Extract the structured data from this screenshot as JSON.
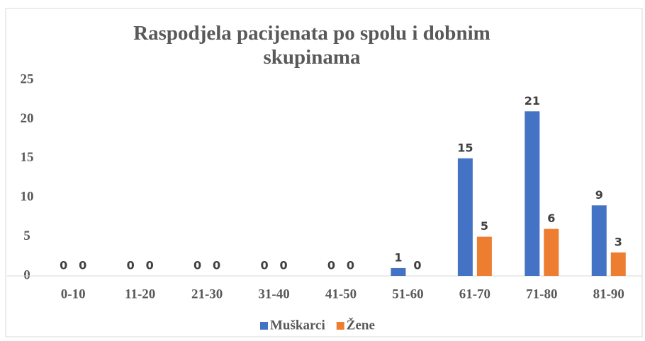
{
  "chart_data": {
    "type": "bar",
    "title": "Raspodjela pacijenata po spolu i dobnim skupinama",
    "categories": [
      "0-10",
      "11-20",
      "21-30",
      "31-40",
      "41-50",
      "51-60",
      "61-70",
      "71-80",
      "81-90"
    ],
    "series": [
      {
        "name": "Muškarci",
        "color": "#4472c4",
        "values": [
          0,
          0,
          0,
          0,
          0,
          1,
          15,
          21,
          9
        ]
      },
      {
        "name": "Žene",
        "color": "#ed7d31",
        "values": [
          0,
          0,
          0,
          0,
          0,
          0,
          5,
          6,
          3
        ]
      }
    ],
    "ylim": [
      0,
      25
    ],
    "yticks": [
      0,
      5,
      10,
      15,
      20,
      25
    ],
    "grid": false,
    "legend": "bottom"
  }
}
